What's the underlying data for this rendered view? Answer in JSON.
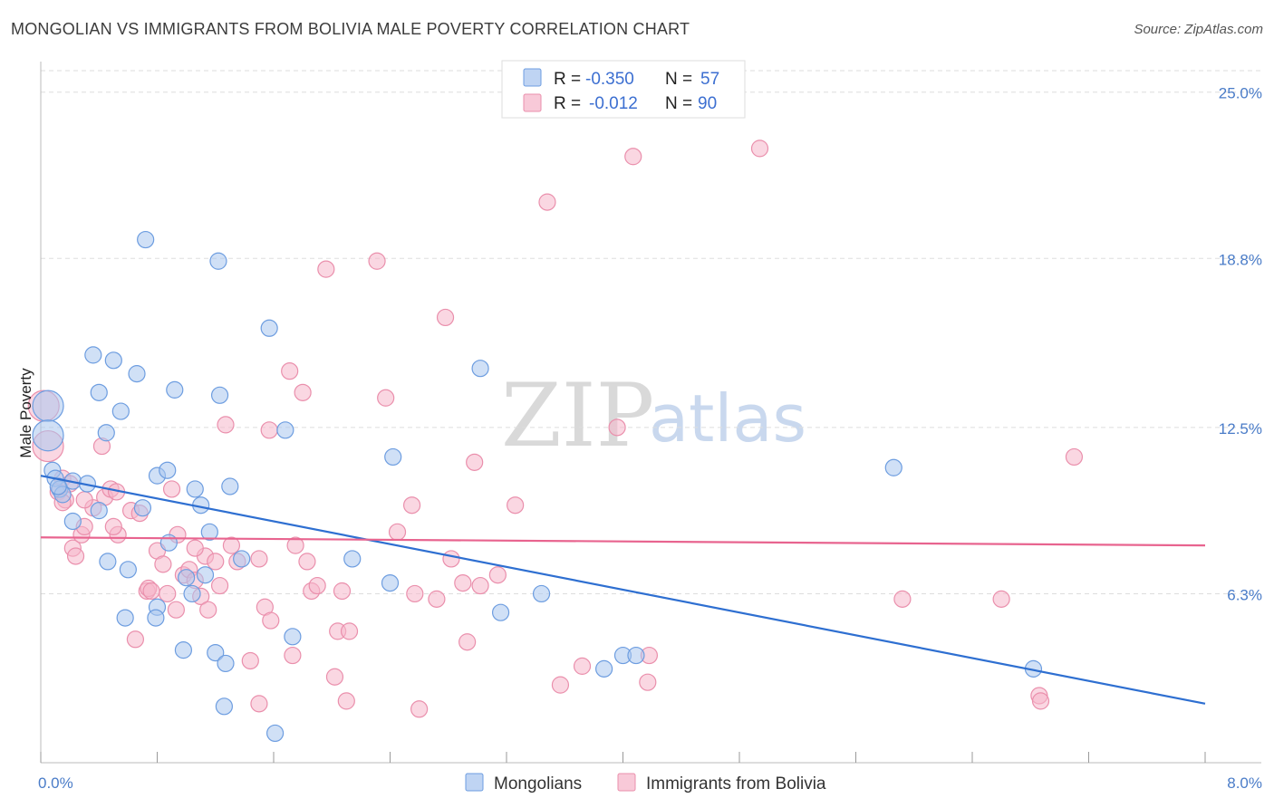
{
  "title": "MONGOLIAN VS IMMIGRANTS FROM BOLIVIA MALE POVERTY CORRELATION CHART",
  "source": "Source: ZipAtlas.com",
  "watermark": {
    "zip": "ZIP",
    "atlas": "atlas"
  },
  "colors": {
    "mongolians_fill": "#aac6ef",
    "mongolians_stroke": "#6d9de0",
    "mongolians_line": "#2e6fd1",
    "bolivia_fill": "#f6b7cb",
    "bolivia_stroke": "#ea8fac",
    "bolivia_line": "#e8648f",
    "grid": "#dddddd",
    "tick_label": "#4a7cc8"
  },
  "legend": {
    "rows": [
      {
        "r_label": "R =",
        "r_value": "-0.350",
        "n_label": "N =",
        "n_value": "57"
      },
      {
        "r_label": "R =",
        "r_value": "-0.012",
        "n_label": "N =",
        "n_value": "90"
      }
    ]
  },
  "chart_data": {
    "type": "scatter",
    "title": "MONGOLIAN VS IMMIGRANTS FROM BOLIVIA MALE POVERTY CORRELATION CHART",
    "xlabel": "",
    "ylabel": "Male Poverty",
    "xlim": [
      0,
      8
    ],
    "ylim": [
      0,
      25.8
    ],
    "x_tick_labels": [
      "0.0%",
      "8.0%"
    ],
    "y_ticks": [
      6.3,
      12.5,
      18.8,
      25.0
    ],
    "y_tick_labels": [
      "6.3%",
      "12.5%",
      "18.8%",
      "25.0%"
    ],
    "grid": true,
    "legend_position": "top-center",
    "series": [
      {
        "name": "Mongolians",
        "trend": {
          "x0": 0.0,
          "y0": 10.7,
          "x1": 8.0,
          "y1": 2.2
        },
        "points": [
          [
            0.05,
            13.3
          ],
          [
            0.05,
            12.2
          ],
          [
            0.08,
            10.9
          ],
          [
            0.1,
            10.6
          ],
          [
            0.13,
            10.2
          ],
          [
            0.15,
            10.0
          ],
          [
            0.22,
            10.5
          ],
          [
            0.32,
            10.4
          ],
          [
            0.22,
            9.0
          ],
          [
            0.4,
            13.8
          ],
          [
            0.5,
            15.0
          ],
          [
            0.36,
            15.2
          ],
          [
            0.45,
            12.3
          ],
          [
            0.55,
            13.1
          ],
          [
            0.66,
            14.5
          ],
          [
            0.72,
            19.5
          ],
          [
            0.7,
            9.5
          ],
          [
            0.8,
            10.7
          ],
          [
            0.87,
            10.9
          ],
          [
            0.92,
            13.9
          ],
          [
            0.88,
            8.2
          ],
          [
            1.06,
            10.2
          ],
          [
            1.1,
            9.6
          ],
          [
            1.16,
            8.6
          ],
          [
            1.22,
            18.7
          ],
          [
            1.23,
            13.7
          ],
          [
            1.3,
            10.3
          ],
          [
            1.38,
            7.6
          ],
          [
            1.57,
            16.2
          ],
          [
            1.68,
            12.4
          ],
          [
            2.14,
            7.6
          ],
          [
            2.4,
            6.7
          ],
          [
            2.42,
            11.4
          ],
          [
            3.02,
            14.7
          ],
          [
            3.16,
            5.6
          ],
          [
            3.44,
            6.3
          ],
          [
            0.4,
            9.4
          ],
          [
            0.46,
            7.5
          ],
          [
            0.6,
            7.2
          ],
          [
            0.58,
            5.4
          ],
          [
            0.8,
            5.8
          ],
          [
            0.79,
            5.4
          ],
          [
            0.98,
            4.2
          ],
          [
            1.0,
            6.9
          ],
          [
            1.04,
            6.3
          ],
          [
            1.13,
            7.0
          ],
          [
            1.2,
            4.1
          ],
          [
            1.27,
            3.7
          ],
          [
            1.26,
            2.1
          ],
          [
            1.73,
            4.7
          ],
          [
            1.61,
            1.1
          ],
          [
            3.87,
            3.5
          ],
          [
            4.0,
            4.0
          ],
          [
            4.09,
            4.0
          ],
          [
            5.86,
            11.0
          ],
          [
            6.82,
            3.5
          ],
          [
            0.12,
            10.3
          ]
        ]
      },
      {
        "name": "Immigrants from Bolivia",
        "trend": {
          "x0": 0.0,
          "y0": 8.4,
          "x1": 8.0,
          "y1": 8.1
        },
        "points": [
          [
            0.02,
            13.3
          ],
          [
            0.05,
            11.8
          ],
          [
            0.12,
            10.1
          ],
          [
            0.15,
            10.6
          ],
          [
            0.17,
            9.8
          ],
          [
            0.2,
            10.4
          ],
          [
            0.22,
            8.0
          ],
          [
            0.28,
            8.5
          ],
          [
            0.3,
            8.8
          ],
          [
            0.36,
            9.5
          ],
          [
            0.42,
            11.8
          ],
          [
            0.44,
            9.9
          ],
          [
            0.48,
            10.2
          ],
          [
            0.53,
            8.5
          ],
          [
            0.62,
            9.4
          ],
          [
            0.68,
            9.3
          ],
          [
            0.73,
            6.4
          ],
          [
            0.74,
            6.5
          ],
          [
            0.8,
            7.9
          ],
          [
            0.84,
            7.4
          ],
          [
            0.87,
            6.3
          ],
          [
            0.93,
            5.7
          ],
          [
            0.94,
            8.5
          ],
          [
            0.98,
            7.0
          ],
          [
            1.02,
            7.2
          ],
          [
            1.06,
            6.8
          ],
          [
            1.1,
            6.2
          ],
          [
            1.13,
            7.7
          ],
          [
            1.15,
            5.7
          ],
          [
            1.2,
            7.5
          ],
          [
            1.23,
            6.6
          ],
          [
            1.27,
            12.6
          ],
          [
            1.31,
            8.1
          ],
          [
            1.35,
            7.5
          ],
          [
            1.44,
            3.8
          ],
          [
            1.5,
            7.6
          ],
          [
            1.54,
            5.8
          ],
          [
            1.57,
            12.4
          ],
          [
            1.58,
            5.3
          ],
          [
            1.71,
            14.6
          ],
          [
            1.73,
            4.0
          ],
          [
            1.75,
            8.1
          ],
          [
            1.8,
            13.8
          ],
          [
            1.83,
            7.5
          ],
          [
            1.86,
            6.4
          ],
          [
            1.9,
            6.6
          ],
          [
            1.96,
            18.4
          ],
          [
            2.02,
            3.2
          ],
          [
            2.04,
            4.9
          ],
          [
            2.07,
            6.4
          ],
          [
            2.1,
            2.3
          ],
          [
            2.12,
            4.9
          ],
          [
            2.31,
            18.7
          ],
          [
            2.37,
            13.6
          ],
          [
            2.45,
            8.6
          ],
          [
            2.55,
            9.6
          ],
          [
            2.57,
            6.3
          ],
          [
            2.72,
            6.1
          ],
          [
            2.78,
            16.6
          ],
          [
            2.82,
            7.6
          ],
          [
            2.9,
            6.7
          ],
          [
            2.93,
            4.5
          ],
          [
            2.98,
            11.2
          ],
          [
            3.02,
            6.6
          ],
          [
            3.14,
            7.0
          ],
          [
            3.26,
            9.6
          ],
          [
            3.48,
            20.9
          ],
          [
            3.57,
            2.9
          ],
          [
            3.96,
            12.5
          ],
          [
            4.07,
            22.6
          ],
          [
            4.17,
            3.0
          ],
          [
            4.18,
            4.0
          ],
          [
            4.94,
            22.9
          ],
          [
            5.92,
            6.1
          ],
          [
            6.6,
            6.1
          ],
          [
            6.86,
            2.5
          ],
          [
            6.87,
            2.3
          ],
          [
            7.1,
            11.4
          ],
          [
            0.15,
            9.7
          ],
          [
            0.3,
            9.8
          ],
          [
            0.52,
            10.1
          ],
          [
            0.65,
            4.6
          ],
          [
            0.76,
            6.4
          ],
          [
            0.9,
            10.2
          ],
          [
            1.06,
            8.0
          ],
          [
            1.5,
            2.2
          ],
          [
            2.6,
            2.0
          ],
          [
            3.72,
            3.6
          ],
          [
            0.5,
            8.8
          ],
          [
            0.24,
            7.7
          ]
        ]
      }
    ]
  },
  "bottom_legend": [
    {
      "label": "Mongolians"
    },
    {
      "label": "Immigrants from Bolivia"
    }
  ]
}
